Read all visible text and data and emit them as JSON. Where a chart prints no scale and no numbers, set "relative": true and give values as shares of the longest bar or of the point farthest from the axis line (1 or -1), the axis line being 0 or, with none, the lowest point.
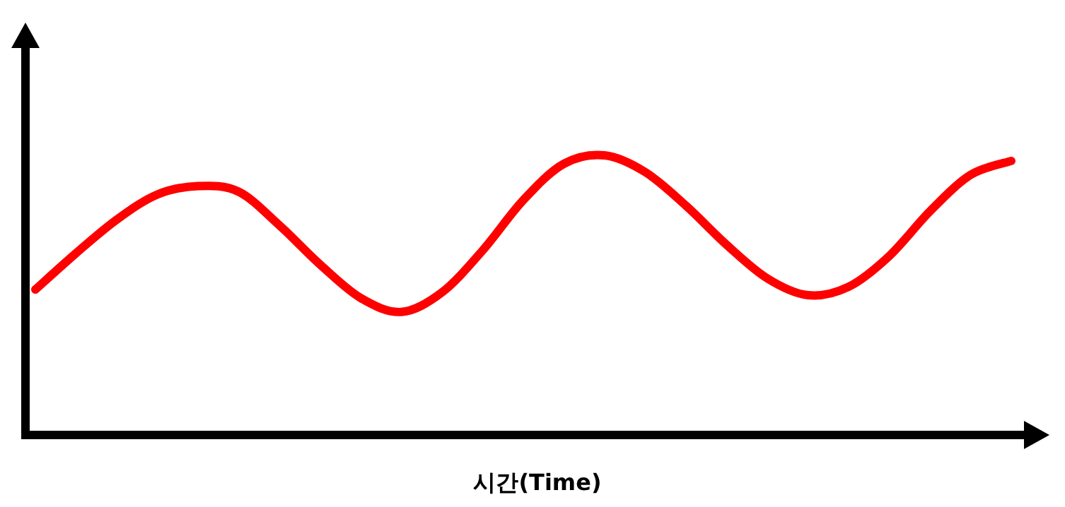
{
  "chart_data": {
    "type": "line",
    "xlabel": "시간(Time)",
    "relative": true,
    "categories": [
      null,
      null,
      null,
      null,
      null,
      null,
      null,
      null,
      null,
      null,
      null,
      null,
      null,
      null,
      null,
      null,
      null,
      null,
      null,
      null,
      null,
      null,
      null,
      null,
      null
    ],
    "series": [
      {
        "color": "#ff0000",
        "values": [
          0.52,
          0.65,
          0.77,
          0.86,
          0.89,
          0.87,
          0.75,
          0.61,
          0.49,
          0.44,
          0.51,
          0.66,
          0.84,
          0.97,
          1.0,
          0.94,
          0.82,
          0.68,
          0.56,
          0.5,
          0.53,
          0.64,
          0.8,
          0.93,
          0.98
        ]
      }
    ]
  }
}
